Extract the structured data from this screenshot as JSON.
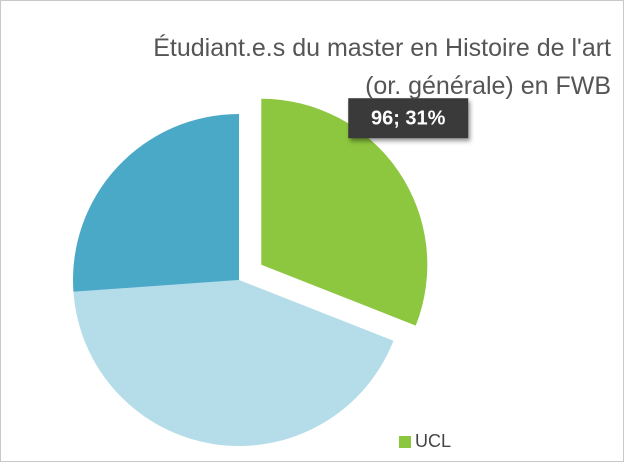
{
  "chart_data": {
    "type": "pie",
    "title": "Étudiant.e.s du master en Histoire de l'art (or. générale) en FWB",
    "categories": [
      "UCL",
      null,
      null
    ],
    "values": [
      96,
      133,
      81
    ],
    "value_labels": [
      "96; 31%",
      null,
      null
    ],
    "colors": [
      "#8dc63f",
      "#b4dce9",
      "#4ba9c8"
    ],
    "legend": "bottom-right"
  }
}
